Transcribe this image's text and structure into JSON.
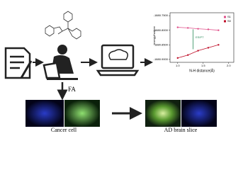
{
  "step_label": "FA",
  "captions": [
    "Cancer cell",
    "AD brain slice"
  ],
  "plot": {
    "y_label": "energy/hartree",
    "x_label": "N-H distance(Å)",
    "annotation": "ESIPT",
    "x": [
      1.0,
      1.2,
      1.4,
      1.6,
      1.8
    ],
    "series": [
      {
        "name": "S1",
        "color": "#e0508a",
        "values": [
          -1880.79,
          -1880.792,
          -1880.795,
          -1880.797,
          -1880.8
        ]
      },
      {
        "name": "S0",
        "color": "#c0102a",
        "values": [
          -1880.895,
          -1880.885,
          -1880.87,
          -1880.86,
          -1880.85
        ]
      }
    ],
    "xlim": [
      0.85,
      2.1
    ],
    "ylim": [
      -1880.91,
      -1880.74
    ],
    "xticks": [
      {
        "value": 1,
        "label": "1.0"
      },
      1.5,
      {
        "value": 2,
        "label": "2.0"
      }
    ],
    "yticks": [
      {
        "value": -1880.75,
        "label": "-1880.7500"
      },
      {
        "value": -1880.8,
        "label": "-1880.8000"
      },
      {
        "value": -1880.85,
        "label": "-1880.8500"
      },
      {
        "value": -1880.9,
        "label": "-1880.9000"
      }
    ]
  }
}
